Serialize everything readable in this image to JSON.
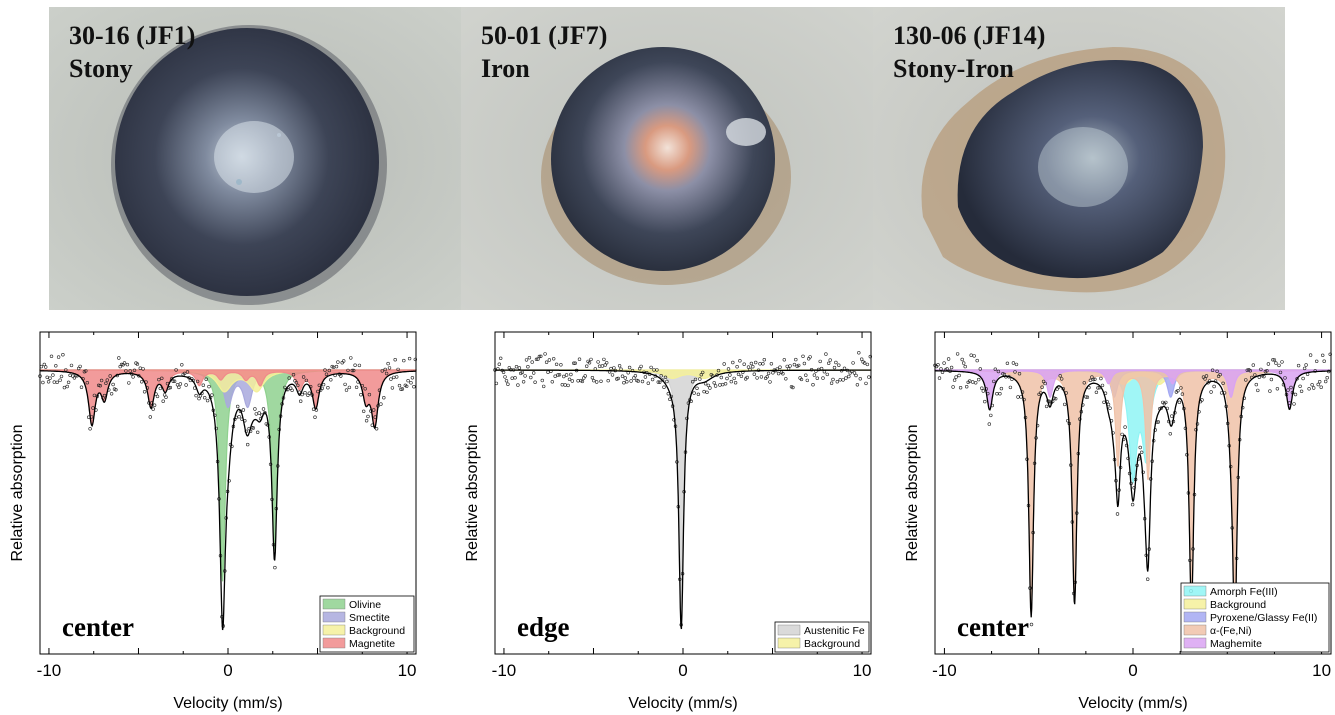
{
  "samples": [
    {
      "id": "30-16 (JF1)",
      "type": "Stony"
    },
    {
      "id": "50-01 (JF7)",
      "type": "Iron"
    },
    {
      "id": "130-06 (JF14)",
      "type": "Stony-Iron"
    }
  ],
  "chart_data": [
    {
      "type": "line",
      "title": "",
      "xlabel": "Velocity (mm/s)",
      "ylabel": "Relative absorption",
      "xlim": [
        -10.5,
        10.5
      ],
      "xticks": [
        -10,
        0,
        10
      ],
      "y_ticks_labeled": false,
      "grid": false,
      "annotation": "center",
      "legend_position": "bottom-right",
      "series": [
        {
          "name": "Olivine",
          "color": "#8fd18f",
          "kind": "doublet",
          "positions": [
            -0.3,
            2.6
          ],
          "depths": [
            0.72,
            0.62
          ],
          "width": 0.36
        },
        {
          "name": "Smectite",
          "color": "#a9a9dd",
          "kind": "doublet",
          "positions": [
            0.0,
            1.1
          ],
          "depths": [
            0.12,
            0.12
          ],
          "width": 0.6
        },
        {
          "name": "Background",
          "color": "#f4f09a",
          "kind": "doublet",
          "positions": [
            -0.2,
            1.6
          ],
          "depths": [
            0.07,
            0.07
          ],
          "width": 1.0
        },
        {
          "name": "Magnetite",
          "color": "#f08a8a",
          "kind": "sextets",
          "positions": [
            -7.6,
            -4.3,
            -1.6,
            1.8,
            4.9,
            8.2,
            -6.9,
            -3.5,
            -0.4,
            1.0,
            4.0,
            7.7
          ],
          "depths": [
            0.18,
            0.12,
            0.05,
            0.05,
            0.12,
            0.18,
            0.09,
            0.06,
            0.03,
            0.03,
            0.06,
            0.09
          ],
          "width": 0.45
        }
      ]
    },
    {
      "type": "line",
      "title": "",
      "xlabel": "Velocity (mm/s)",
      "ylabel": "Relative absorption",
      "xlim": [
        -10.5,
        10.5
      ],
      "xticks": [
        -10,
        0,
        10
      ],
      "y_ticks_labeled": false,
      "grid": false,
      "annotation": "edge",
      "legend_position": "bottom-right",
      "series": [
        {
          "name": "Austenitic Fe",
          "color": "#d3d3d3",
          "kind": "singlet",
          "positions": [
            -0.1
          ],
          "depths": [
            1.0
          ],
          "width": 0.32
        },
        {
          "name": "Background",
          "color": "#f4f09a",
          "kind": "doublet",
          "positions": [
            -0.6,
            1.2
          ],
          "depths": [
            0.03,
            0.03
          ],
          "width": 1.2
        }
      ]
    },
    {
      "type": "line",
      "title": "",
      "xlabel": "Velocity (mm/s)",
      "ylabel": "Relative absorption",
      "xlim": [
        -10.5,
        10.5
      ],
      "xticks": [
        -10,
        0,
        10
      ],
      "y_ticks_labeled": false,
      "grid": false,
      "annotation": "center",
      "legend_position": "bottom-right",
      "series": [
        {
          "name": "Amorph Fe(III)",
          "color": "#8ff4f4",
          "kind": "doublet",
          "positions": [
            0.0,
            0.7
          ],
          "depths": [
            0.38,
            0.3
          ],
          "width": 0.5
        },
        {
          "name": "Background",
          "color": "#f4f09a",
          "kind": "doublet",
          "positions": [
            -0.5,
            1.4
          ],
          "depths": [
            0.05,
            0.05
          ],
          "width": 1.0
        },
        {
          "name": "Pyroxene/Glassy Fe(II)",
          "color": "#a3a8f2",
          "kind": "doublet",
          "positions": [
            -1.0,
            2.0
          ],
          "depths": [
            0.1,
            0.1
          ],
          "width": 0.45
        },
        {
          "name": "α-(Fe,Ni)",
          "color": "#f0c2a8",
          "kind": "sextet",
          "positions": [
            -5.4,
            -3.1,
            -0.8,
            0.8,
            3.1,
            5.4
          ],
          "depths": [
            0.9,
            0.85,
            0.35,
            0.4,
            0.85,
            0.9
          ],
          "width": 0.3
        },
        {
          "name": "Maghemite",
          "color": "#d9a3f2",
          "kind": "sextet",
          "positions": [
            -7.6,
            -4.4,
            -1.3,
            2.1,
            5.2,
            8.3
          ],
          "depths": [
            0.14,
            0.1,
            0.05,
            0.05,
            0.1,
            0.14
          ],
          "width": 0.4
        }
      ]
    }
  ]
}
